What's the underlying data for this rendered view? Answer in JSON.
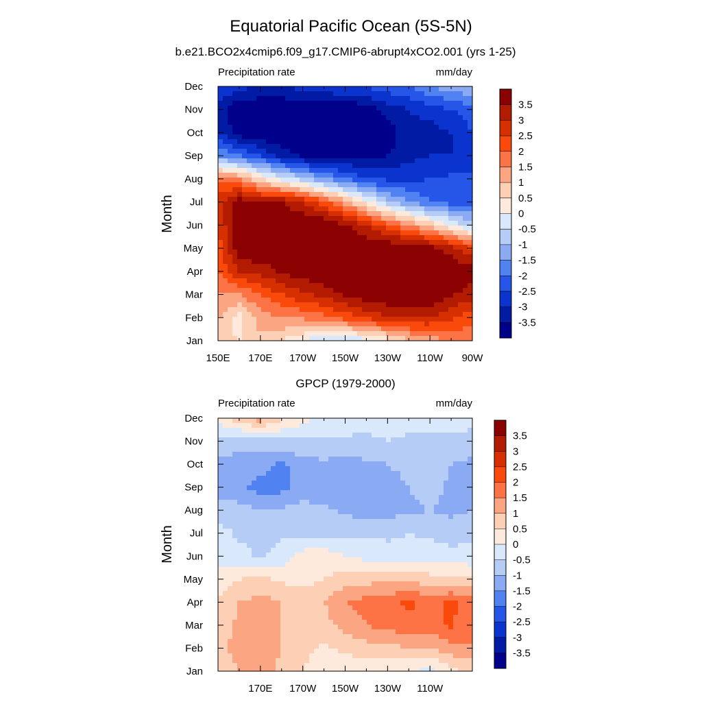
{
  "title": "Equatorial Pacific Ocean (5S-5N)",
  "chart_data": [
    {
      "type": "heatmap",
      "name": "model",
      "subtitle": "b.e21.BCO2x4cmip6.f09_g17.CMIP6-abrupt4xCO2.001 (yrs 1-25)",
      "left_label": "Precipitation rate",
      "right_label": "mm/day",
      "ylabel": "Month",
      "months": [
        "Jan",
        "Feb",
        "Mar",
        "Apr",
        "May",
        "Jun",
        "Jul",
        "Aug",
        "Sep",
        "Oct",
        "Nov",
        "Dec"
      ],
      "xticks": [
        "150E",
        "170E",
        "170W",
        "150W",
        "130W",
        "110W",
        "90W"
      ],
      "xlim": [
        150,
        270
      ],
      "x": [
        150,
        160,
        170,
        180,
        190,
        200,
        210,
        220,
        230,
        240,
        250,
        260,
        270
      ],
      "values": [
        [
          1.0,
          0.4,
          0.8,
          0.5,
          0.0,
          -0.5,
          -0.5,
          -0.2,
          0.2,
          0.8,
          1.2,
          1.5,
          1.6
        ],
        [
          1.0,
          0.3,
          1.3,
          1.5,
          1.6,
          1.8,
          2.2,
          2.6,
          2.9,
          3.1,
          3.0,
          2.6,
          2.2
        ],
        [
          1.5,
          1.5,
          2.0,
          2.5,
          2.9,
          3.2,
          3.6,
          3.9,
          4.0,
          4.0,
          4.0,
          3.6,
          3.2
        ],
        [
          2.0,
          3.0,
          3.2,
          3.6,
          3.8,
          4.0,
          4.0,
          4.0,
          4.0,
          4.0,
          4.0,
          4.0,
          3.8
        ],
        [
          2.2,
          4.0,
          4.0,
          4.0,
          4.0,
          4.0,
          4.0,
          4.0,
          4.0,
          4.0,
          3.8,
          3.2,
          2.5
        ],
        [
          2.5,
          4.0,
          4.0,
          4.0,
          4.0,
          4.0,
          3.6,
          3.0,
          2.2,
          1.5,
          0.8,
          0.0,
          -0.8
        ],
        [
          2.8,
          3.8,
          3.5,
          3.5,
          3.0,
          2.2,
          1.2,
          0.2,
          -0.8,
          -1.5,
          -2.0,
          -2.2,
          -2.2
        ],
        [
          1.8,
          1.5,
          0.5,
          -0.2,
          -0.8,
          -1.5,
          -2.0,
          -2.5,
          -2.6,
          -2.6,
          -2.5,
          -2.4,
          -2.4
        ],
        [
          -1.5,
          -2.0,
          -2.5,
          -3.2,
          -3.6,
          -3.6,
          -3.6,
          -3.6,
          -3.5,
          -3.2,
          -3.0,
          -3.0,
          -2.8
        ],
        [
          -3.0,
          -3.8,
          -4.0,
          -4.0,
          -4.0,
          -4.0,
          -4.0,
          -4.0,
          -3.8,
          -3.2,
          -3.2,
          -3.0,
          -2.5
        ],
        [
          -3.2,
          -4.0,
          -4.0,
          -4.0,
          -4.0,
          -4.0,
          -4.0,
          -3.8,
          -3.3,
          -3.0,
          -2.8,
          -2.5,
          -2.2
        ],
        [
          -2.5,
          -2.8,
          -3.0,
          -3.0,
          -2.8,
          -2.6,
          -2.5,
          -2.4,
          -2.2,
          -2.0,
          -1.5,
          -1.2,
          -1.0
        ]
      ]
    },
    {
      "type": "heatmap",
      "name": "obs",
      "subtitle": "GPCP (1979-2000)",
      "left_label": "Precipitation rate",
      "right_label": "mm/day",
      "ylabel": "Month",
      "months": [
        "Jan",
        "Feb",
        "Mar",
        "Apr",
        "May",
        "Jun",
        "Jul",
        "Aug",
        "Sep",
        "Oct",
        "Nov",
        "Dec"
      ],
      "xticks": [
        "170E",
        "170W",
        "150W",
        "130W",
        "110W"
      ],
      "xlim": [
        150,
        270
      ],
      "x": [
        150,
        160,
        170,
        180,
        190,
        200,
        210,
        220,
        230,
        240,
        250,
        260,
        270
      ],
      "values": [
        [
          0.6,
          1.0,
          1.5,
          0.8,
          0.5,
          0.3,
          0.2,
          0.2,
          0.2,
          0.0,
          -0.2,
          0.3,
          0.6
        ],
        [
          0.8,
          1.2,
          1.4,
          1.0,
          0.6,
          0.4,
          0.6,
          0.8,
          0.8,
          1.0,
          1.0,
          1.3,
          1.5
        ],
        [
          0.8,
          1.1,
          1.5,
          1.0,
          0.8,
          0.8,
          1.2,
          1.5,
          1.7,
          1.9,
          1.7,
          2.1,
          1.5
        ],
        [
          0.6,
          1.0,
          1.2,
          1.0,
          0.8,
          1.0,
          1.5,
          1.7,
          1.8,
          2.1,
          1.8,
          2.1,
          1.8
        ],
        [
          0.2,
          0.5,
          0.6,
          0.4,
          0.3,
          0.5,
          0.7,
          0.8,
          0.9,
          0.8,
          0.7,
          0.6,
          0.5
        ],
        [
          -0.3,
          -0.3,
          -0.6,
          -0.3,
          0.2,
          0.3,
          0.0,
          -0.2,
          -0.3,
          -0.3,
          -0.2,
          -0.3,
          -0.3
        ],
        [
          -0.3,
          -0.6,
          -0.7,
          -0.6,
          -0.6,
          -0.6,
          -0.7,
          -0.6,
          -0.6,
          -0.5,
          -0.6,
          -0.8,
          -0.6
        ],
        [
          -0.7,
          -0.8,
          -1.0,
          -0.9,
          -0.8,
          -0.9,
          -1.1,
          -1.2,
          -1.2,
          -1.1,
          -1.0,
          -1.1,
          -1.0
        ],
        [
          -1.3,
          -1.4,
          -1.7,
          -1.7,
          -1.3,
          -1.3,
          -1.2,
          -1.3,
          -1.3,
          -1.0,
          -0.8,
          -1.1,
          -1.1
        ],
        [
          -1.1,
          -1.2,
          -1.3,
          -1.6,
          -1.2,
          -1.1,
          -1.2,
          -1.1,
          -1.0,
          -0.8,
          -0.6,
          -1.0,
          -1.1
        ],
        [
          -0.7,
          -0.8,
          -0.8,
          -0.6,
          -0.6,
          -0.6,
          -0.6,
          -0.6,
          -0.5,
          -0.6,
          -0.6,
          -0.7,
          -0.7
        ],
        [
          0.2,
          0.8,
          1.3,
          0.6,
          0.2,
          -0.2,
          -0.2,
          -0.3,
          -0.3,
          -0.3,
          -0.3,
          -0.2,
          -0.3
        ]
      ]
    }
  ],
  "colorbar": {
    "labels": [
      "3.5",
      "3",
      "2.5",
      "2",
      "1.5",
      "1",
      "0.5",
      "0",
      "-0.5",
      "-1",
      "-1.5",
      "-2",
      "-2.5",
      "-3",
      "-3.5"
    ],
    "levels": [
      3.5,
      3,
      2.5,
      2,
      1.5,
      1,
      0.5,
      0,
      -0.5,
      -1,
      -1.5,
      -2,
      -2.5,
      -3,
      -3.5
    ],
    "colors_top_to_bottom": [
      "#8b0000",
      "#b31b00",
      "#d73000",
      "#fa4a0b",
      "#fd7346",
      "#fca582",
      "#fdcfb5",
      "#fdeadc",
      "#d9e8fa",
      "#b5ccf6",
      "#8aaaf3",
      "#5082f1",
      "#2556e8",
      "#0b33ce",
      "#021ba5",
      "#00008b"
    ]
  }
}
